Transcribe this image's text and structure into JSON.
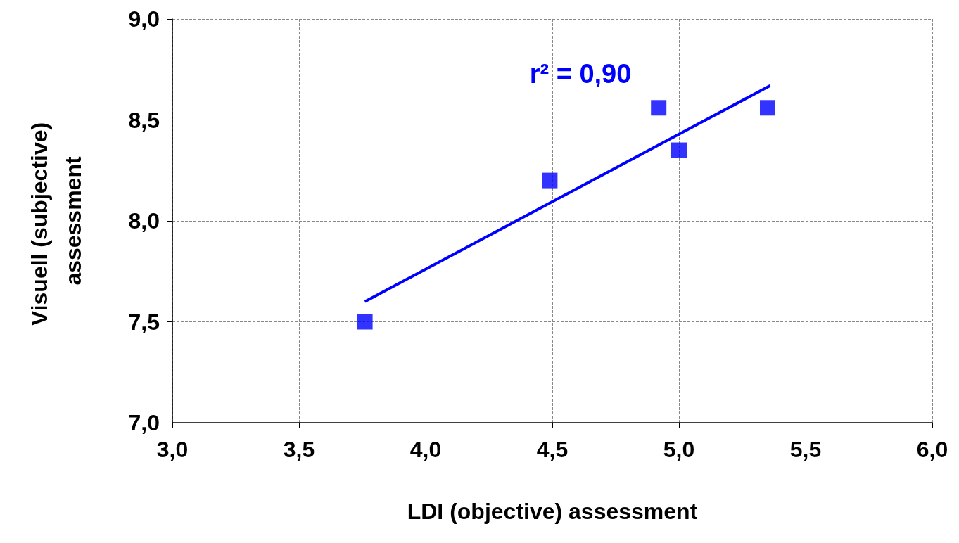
{
  "chart_data": {
    "type": "scatter",
    "xlabel": "LDI (objective) assessment",
    "ylabel": "Visuell (subjective) assessment",
    "series": [
      {
        "color": "#0000ff",
        "x": [
          3.76,
          4.49,
          4.92,
          5.0,
          5.35
        ],
        "values": [
          7.5,
          8.2,
          8.56,
          8.35,
          8.56
        ],
        "marker": "square"
      },
      {
        "type": "line",
        "color": "#0000ff",
        "x": [
          3.76,
          5.36
        ],
        "values": [
          7.6,
          8.67
        ],
        "marker": "none",
        "line_style": "solid"
      }
    ],
    "annotations": [
      "r² = 0,90"
    ],
    "xlim": [
      3,
      6
    ],
    "xticks": [
      {
        "value": 3,
        "label": "3,0"
      },
      {
        "value": 3.5,
        "label": "3,5"
      },
      {
        "value": 4,
        "label": "4,0"
      },
      {
        "value": 4.5,
        "label": "4,5"
      },
      {
        "value": 5,
        "label": "5,0"
      },
      {
        "value": 5.5,
        "label": "5,5"
      },
      {
        "value": 6,
        "label": "6,0"
      }
    ],
    "ylim": [
      7,
      9
    ],
    "yticks": [
      {
        "value": 7,
        "label": "7,0"
      },
      {
        "value": 7.5,
        "label": "7,5"
      },
      {
        "value": 8,
        "label": "8,0"
      },
      {
        "value": 8.5,
        "label": "8,5"
      },
      {
        "value": 9,
        "label": "9,0"
      }
    ],
    "grid": true
  }
}
